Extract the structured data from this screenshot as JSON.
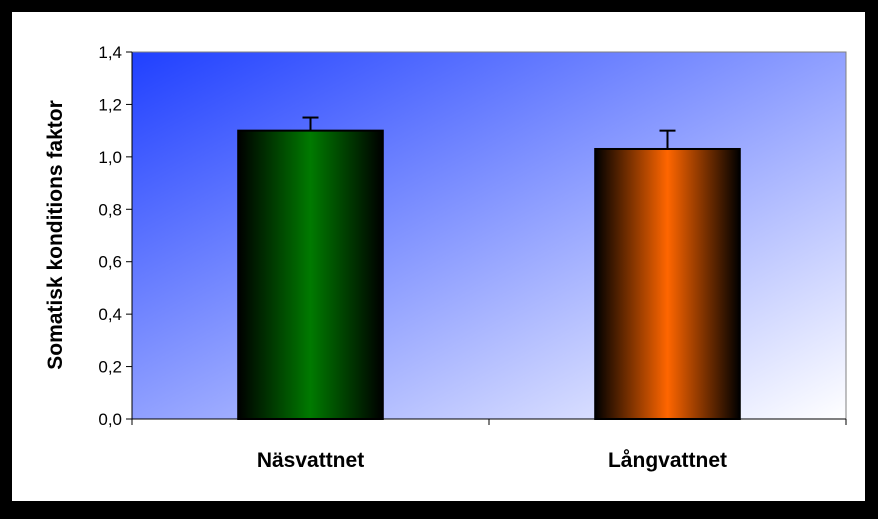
{
  "chart_data": {
    "type": "bar",
    "categories": [
      "Näsvattnet",
      "Långvattnet"
    ],
    "values": [
      1.1,
      1.03
    ],
    "errors": [
      0.05,
      0.07
    ],
    "ylabel": "Somatisk konditions faktor",
    "xlabel": "",
    "ylim": [
      0,
      1.4
    ],
    "yticks": [
      "0,0",
      "0,2",
      "0,4",
      "0,6",
      "0,8",
      "1,0",
      "1,2",
      "1,4"
    ],
    "grid": false,
    "legend": "none"
  },
  "colors": {
    "bar_1": "#007a00",
    "bar_2": "#ff6600",
    "plot_gradient_start": "#2040ff",
    "plot_gradient_end": "#ffffff",
    "frame_border": "#000000",
    "canvas": "#ffffff"
  }
}
